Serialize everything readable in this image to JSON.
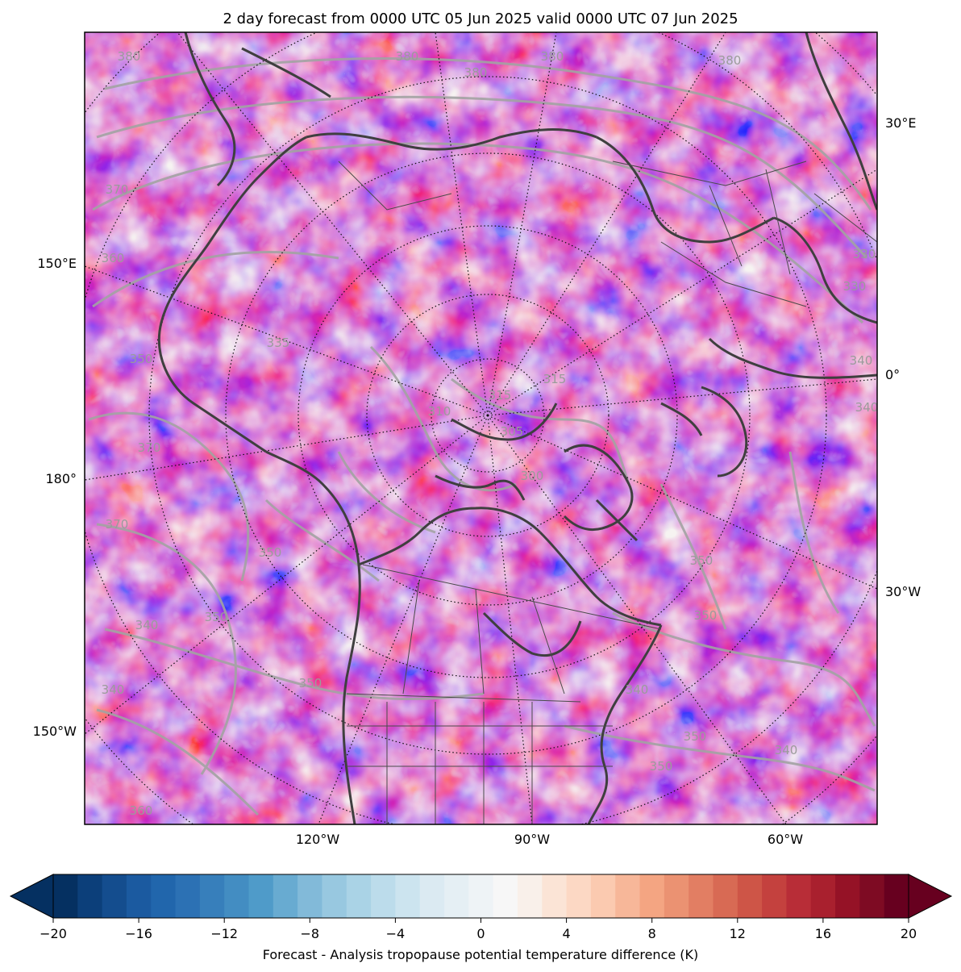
{
  "title": "2 day forecast from 0000 UTC 05 Jun 2025 valid 0000 UTC 07 Jun 2025",
  "map": {
    "lon_labels": [
      {
        "text": "30°E",
        "side": "right"
      },
      {
        "text": "0°",
        "side": "right"
      },
      {
        "text": "30°W",
        "side": "right"
      },
      {
        "text": "150°E",
        "side": "left"
      },
      {
        "text": "180°",
        "side": "left"
      },
      {
        "text": "150°W",
        "side": "left"
      },
      {
        "text": "120°W",
        "side": "bottom"
      },
      {
        "text": "90°W",
        "side": "bottom"
      },
      {
        "text": "60°W",
        "side": "bottom"
      }
    ],
    "contour_labels": [
      "380",
      "380",
      "380",
      "380",
      "380",
      "370",
      "370",
      "370",
      "360",
      "360",
      "340",
      "340",
      "340",
      "340",
      "335",
      "330",
      "330",
      "315",
      "315",
      "305",
      "300",
      "310",
      "350",
      "350",
      "350",
      "350",
      "350",
      "350",
      "350",
      "350",
      "340",
      "340"
    ]
  },
  "colorbar": {
    "label": "Forecast - Analysis tropopause potential temperature difference (K)",
    "min": -20,
    "max": 20,
    "step": 1,
    "ticks": [
      "−20",
      "−16",
      "−12",
      "−8",
      "−4",
      "0",
      "4",
      "8",
      "12",
      "16",
      "20"
    ],
    "extend": "both",
    "colormap": "RdBu_r",
    "colors": [
      "#053061",
      "#0c3f7a",
      "#144d8e",
      "#1b5aa0",
      "#2166ac",
      "#2c71b4",
      "#377fbb",
      "#438dc2",
      "#4f9bc9",
      "#68abd1",
      "#82bad9",
      "#98c8e0",
      "#aad3e6",
      "#bcdceb",
      "#cce4ef",
      "#dbeaf2",
      "#e5eff4",
      "#eef3f6",
      "#f7f7f7",
      "#f9f0ea",
      "#fbe4d6",
      "#fcd8c4",
      "#fbcab0",
      "#f7b799",
      "#f4a582",
      "#eb9272",
      "#e27e63",
      "#d86a54",
      "#ce5547",
      "#c4413e",
      "#b82d37",
      "#a9202e",
      "#951226",
      "#7e0b23",
      "#67001f"
    ]
  }
}
